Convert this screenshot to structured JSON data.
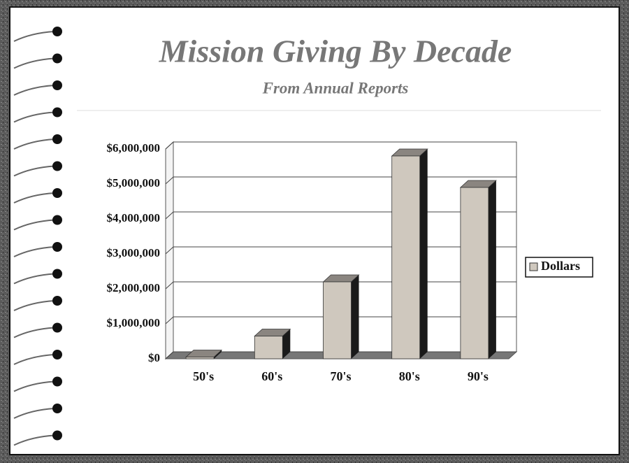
{
  "chart_data": {
    "type": "bar",
    "title": "Mission Giving By Decade",
    "subtitle": "From Annual Reports",
    "categories": [
      "50's",
      "60's",
      "70's",
      "80's",
      "90's"
    ],
    "series": [
      {
        "name": "Dollars",
        "color": "#cfc8be",
        "values": [
          50000,
          650000,
          2200000,
          5800000,
          4900000
        ]
      }
    ],
    "ylim": [
      0,
      6000000
    ],
    "yticks": [
      {
        "value": 0,
        "label": "$0"
      },
      {
        "value": 1000000,
        "label": "$1,000,000"
      },
      {
        "value": 2000000,
        "label": "$2,000,000"
      },
      {
        "value": 3000000,
        "label": "$3,000,000"
      },
      {
        "value": 4000000,
        "label": "$4,000,000"
      },
      {
        "value": 5000000,
        "label": "$5,000,000"
      },
      {
        "value": 6000000,
        "label": "$6,000,000"
      }
    ],
    "grid": true,
    "legend": "right"
  }
}
